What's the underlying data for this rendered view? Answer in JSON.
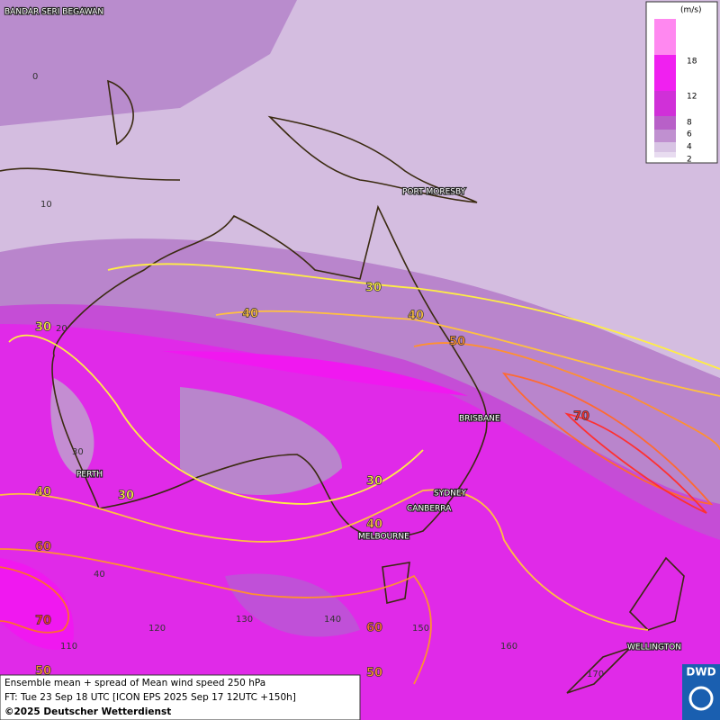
{
  "legend": {
    "unit": "(m/s)",
    "labels": [
      "18",
      "12",
      "8",
      "6",
      "4",
      "2"
    ]
  },
  "cities": [
    "BANDAR SERI BEGAWAN",
    "PORT MORESBY",
    "BRISBANE",
    "PERTH",
    "SYDNEY",
    "CANBERRA",
    "MELBOURNE",
    "WELLINGTON"
  ],
  "contour_labels": [
    "30",
    "40",
    "40",
    "50",
    "70",
    "30",
    "40",
    "30",
    "30",
    "40",
    "60",
    "70",
    "50",
    "60",
    "50"
  ],
  "grid_labels": [
    "0",
    "10",
    "20",
    "30",
    "40",
    "110",
    "120",
    "130",
    "140",
    "150",
    "160",
    "170"
  ],
  "footer": {
    "line1": "Ensemble mean + spread of Mean wind speed 250 hPa",
    "line2": "FT: Tue 23 Sep 18 UTC [ICON EPS 2025 Sep 17 12UTC +150h]",
    "line3": "©2025 Deutscher Wetterdienst"
  },
  "logo": "DWD"
}
